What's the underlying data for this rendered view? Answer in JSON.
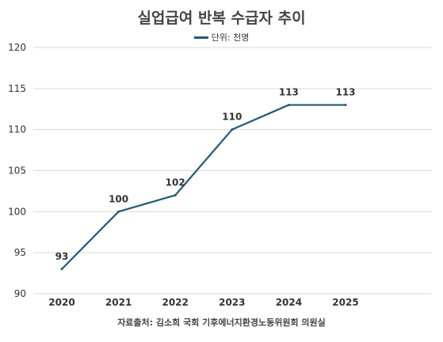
{
  "chart_data": {
    "type": "line",
    "title": "실업급여 반복 수급자 추이",
    "xlabel": "",
    "ylabel": "",
    "categories": [
      "2020",
      "2021",
      "2022",
      "2023",
      "2024",
      "2025"
    ],
    "series": [
      {
        "name": "단위: 천명",
        "values": [
          93,
          100,
          102,
          110,
          113,
          113
        ],
        "color": "#1f5a7a"
      }
    ],
    "ylim": [
      90,
      120
    ],
    "yticks": [
      90,
      95,
      100,
      105,
      110,
      115,
      120
    ],
    "grid": true,
    "legend": "top-center",
    "source": "자료출처: 김소희 국회 기후에너지환경노동위원회 의원실"
  }
}
